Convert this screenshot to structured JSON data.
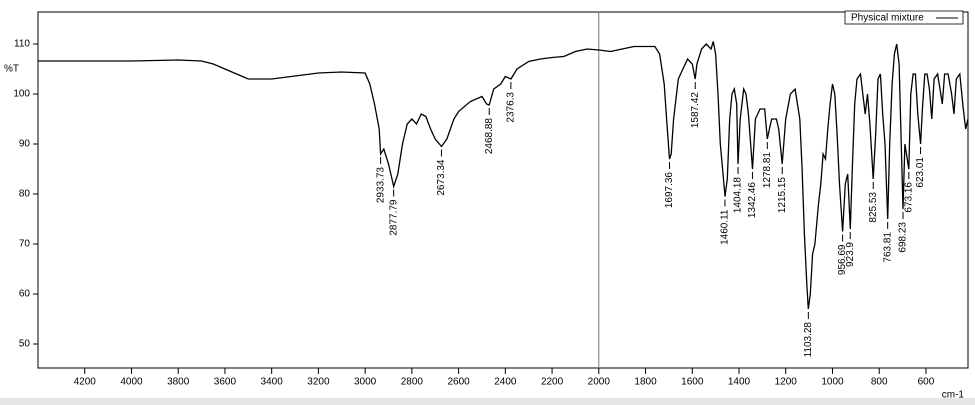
{
  "chart_data": {
    "type": "line",
    "y_label": "%T",
    "x_label": "cm-1",
    "legend": "Physical mixture",
    "color": "#000000",
    "xlim": [
      4400,
      420
    ],
    "ylim": [
      45.2,
      116.4
    ],
    "xticks": [
      4200,
      4000,
      3800,
      3600,
      3400,
      3200,
      3000,
      2800,
      2600,
      2400,
      2200,
      2000,
      1800,
      1600,
      1400,
      1200,
      1000,
      800,
      600
    ],
    "yticks": [
      50,
      60,
      70,
      80,
      90,
      100,
      110
    ],
    "x": [
      4400,
      4200,
      4000,
      3800,
      3700,
      3650,
      3550,
      3500,
      3400,
      3300,
      3200,
      3100,
      3000,
      2980,
      2960,
      2940,
      2933.73,
      2920,
      2900,
      2877.79,
      2860,
      2840,
      2820,
      2800,
      2780,
      2760,
      2740,
      2720,
      2700,
      2673.34,
      2650,
      2620,
      2600,
      2550,
      2500,
      2480,
      2468.88,
      2450,
      2420,
      2400,
      2376.3,
      2350,
      2300,
      2250,
      2200,
      2150,
      2100,
      2050,
      2000,
      1950,
      1900,
      1850,
      1800,
      1760,
      1740,
      1720,
      1710,
      1697.36,
      1690,
      1680,
      1660,
      1640,
      1620,
      1600,
      1587.42,
      1580,
      1560,
      1540,
      1520,
      1510,
      1500,
      1490,
      1480,
      1470,
      1460.11,
      1450,
      1440,
      1430,
      1420,
      1410,
      1404.18,
      1395,
      1380,
      1370,
      1360,
      1342.46,
      1330,
      1310,
      1290,
      1278.81,
      1270,
      1260,
      1240,
      1230,
      1215.15,
      1200,
      1180,
      1160,
      1140,
      1130,
      1120,
      1110,
      1103.28,
      1095,
      1085,
      1075,
      1060,
      1050,
      1040,
      1030,
      1020,
      1010,
      1000,
      990,
      980,
      970,
      956.69,
      945,
      935,
      923.9,
      915,
      905,
      895,
      880,
      870,
      860,
      850,
      840,
      825.53,
      815,
      805,
      795,
      785,
      775,
      763.81,
      755,
      745,
      735,
      725,
      715,
      698.23,
      690,
      673.16,
      665,
      655,
      645,
      635,
      623.01,
      615,
      605,
      595,
      585,
      575,
      565,
      550,
      540,
      530,
      520,
      505,
      490,
      480,
      470,
      455,
      440,
      430,
      420
    ],
    "values": [
      106.6,
      106.6,
      106.6,
      106.8,
      106.6,
      106,
      104,
      103,
      103,
      103.6,
      104.2,
      104.4,
      104.2,
      102,
      98,
      93,
      88,
      89,
      86,
      81.5,
      84,
      90,
      94,
      95,
      94,
      96,
      95.5,
      93,
      91,
      89.5,
      91,
      95,
      96.5,
      98.5,
      99.5,
      98,
      97.8,
      101,
      102,
      103.5,
      103,
      105,
      106.5,
      107,
      107.3,
      107.5,
      108.5,
      109,
      108.8,
      108.5,
      109,
      109.5,
      109.5,
      109.5,
      108,
      102,
      95,
      87,
      88,
      95,
      103,
      105,
      107,
      106,
      103,
      106,
      109,
      110,
      109,
      110.5,
      108,
      100,
      90,
      85,
      79.5,
      83,
      95,
      100,
      101,
      98,
      86,
      95,
      101,
      100,
      96,
      85,
      95,
      97,
      97,
      91,
      93,
      95,
      95,
      93,
      86,
      95,
      100,
      101,
      95,
      85,
      72,
      62,
      57,
      60,
      68,
      70,
      78,
      82,
      88,
      87,
      93,
      98,
      102,
      100,
      92,
      82,
      72.5,
      82,
      84,
      73,
      85,
      98,
      103,
      104,
      100,
      96,
      100,
      94,
      83,
      92,
      103,
      104,
      96,
      90,
      75,
      90,
      102,
      108,
      110,
      106,
      77,
      90,
      85,
      100,
      104,
      104,
      96,
      90,
      97,
      104,
      104,
      101,
      95,
      103,
      104,
      101,
      98,
      104,
      104,
      100,
      96,
      103,
      104,
      97,
      93,
      95
    ],
    "peaks": [
      2933.73,
      2877.79,
      2673.34,
      2468.88,
      2376.3,
      1697.36,
      1587.42,
      1460.11,
      1404.18,
      1342.46,
      1278.81,
      1215.15,
      1103.28,
      956.69,
      923.9,
      825.53,
      763.81,
      698.23,
      673.16,
      623.01
    ]
  }
}
